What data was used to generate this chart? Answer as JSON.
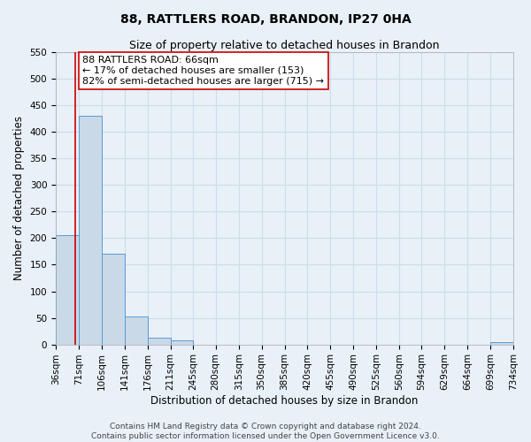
{
  "title": "88, RATTLERS ROAD, BRANDON, IP27 0HA",
  "subtitle": "Size of property relative to detached houses in Brandon",
  "xlabel": "Distribution of detached houses by size in Brandon",
  "ylabel": "Number of detached properties",
  "bin_edges": [
    36,
    71,
    106,
    141,
    176,
    211,
    245,
    280,
    315,
    350,
    385,
    420,
    455,
    490,
    525,
    560,
    594,
    629,
    664,
    699,
    734
  ],
  "bin_labels": [
    "36sqm",
    "71sqm",
    "106sqm",
    "141sqm",
    "176sqm",
    "211sqm",
    "245sqm",
    "280sqm",
    "315sqm",
    "350sqm",
    "385sqm",
    "420sqm",
    "455sqm",
    "490sqm",
    "525sqm",
    "560sqm",
    "594sqm",
    "629sqm",
    "664sqm",
    "699sqm",
    "734sqm"
  ],
  "counts": [
    205,
    430,
    170,
    52,
    12,
    8,
    0,
    0,
    0,
    0,
    0,
    0,
    0,
    0,
    0,
    0,
    0,
    0,
    0,
    4
  ],
  "bar_color": "#c9d9e8",
  "bar_edge_color": "#5b9bd5",
  "property_size": 66,
  "property_line_color": "#cc0000",
  "annotation_line1": "88 RATTLERS ROAD: 66sqm",
  "annotation_line2": "← 17% of detached houses are smaller (153)",
  "annotation_line3": "82% of semi-detached houses are larger (715) →",
  "annotation_box_color": "#ffffff",
  "annotation_box_edge_color": "#cc0000",
  "ylim": [
    0,
    550
  ],
  "yticks": [
    0,
    50,
    100,
    150,
    200,
    250,
    300,
    350,
    400,
    450,
    500,
    550
  ],
  "footer1": "Contains HM Land Registry data © Crown copyright and database right 2024.",
  "footer2": "Contains public sector information licensed under the Open Government Licence v3.0.",
  "background_color": "#e8f0f8",
  "grid_color": "#d0dce8",
  "title_fontsize": 10,
  "subtitle_fontsize": 9,
  "axis_label_fontsize": 8.5,
  "tick_fontsize": 7.5,
  "annotation_fontsize": 8,
  "footer_fontsize": 6.5
}
